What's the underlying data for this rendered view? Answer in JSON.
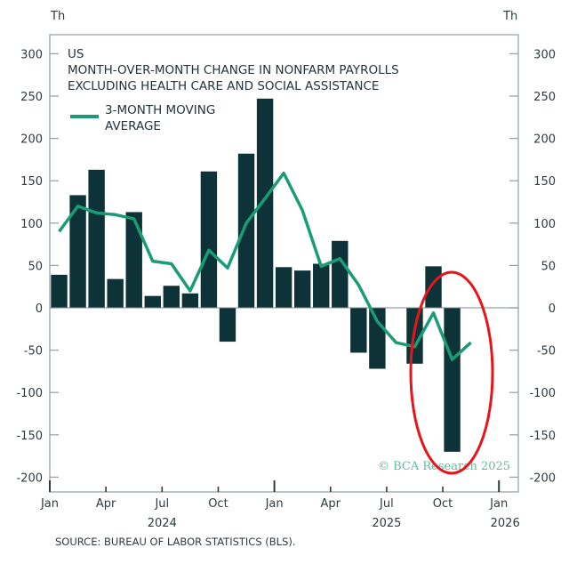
{
  "chart_data": {
    "type": "bar+line",
    "title_lines": [
      "US",
      "MONTH-OVER-MONTH CHANGE IN NONFARM PAYROLLS",
      "EXCLUDING HEALTH CARE AND SOCIAL ASSISTANCE"
    ],
    "ylabel_left": "Th",
    "ylabel_right": "Th",
    "ylim": [
      -200,
      300
    ],
    "yticks": [
      300,
      250,
      200,
      150,
      100,
      50,
      0,
      -50,
      -100,
      -150,
      -200
    ],
    "xticks": [
      {
        "month": "Jan",
        "year": "",
        "index": 0
      },
      {
        "month": "Apr",
        "year": "",
        "index": 3
      },
      {
        "month": "Jul",
        "year": "2024",
        "index": 6
      },
      {
        "month": "Oct",
        "year": "",
        "index": 9
      },
      {
        "month": "Jan",
        "year": "",
        "index": 12
      },
      {
        "month": "Apr",
        "year": "",
        "index": 15
      },
      {
        "month": "Jul",
        "year": "2025",
        "index": 18
      },
      {
        "month": "Oct",
        "year": "",
        "index": 21
      },
      {
        "month": "Jan",
        "year": "2026",
        "index": 24
      }
    ],
    "x": [
      "2024-01",
      "2024-02",
      "2024-03",
      "2024-04",
      "2024-05",
      "2024-06",
      "2024-07",
      "2024-08",
      "2024-09",
      "2024-10",
      "2024-11",
      "2024-12",
      "2025-01",
      "2025-02",
      "2025-03",
      "2025-04",
      "2025-05",
      "2025-06",
      "2025-07",
      "2025-08",
      "2025-09",
      "2025-10",
      "2025-11"
    ],
    "series": [
      {
        "type": "bar",
        "color": "#0d3338",
        "values": [
          39,
          133,
          163,
          34,
          113,
          14,
          26,
          17,
          161,
          -40,
          182,
          247,
          48,
          44,
          52,
          79,
          -53,
          -72,
          0,
          -66,
          49,
          -170,
          null
        ]
      },
      {
        "type": "line",
        "name": "3-MONTH MOVING AVERAGE",
        "color": "#1a9c74",
        "values": [
          90,
          120,
          112,
          110,
          105,
          55,
          52,
          20,
          68,
          47,
          100,
          129,
          159,
          115,
          49,
          58,
          27,
          -16,
          -41,
          -46,
          -6,
          -61,
          -41
        ]
      }
    ],
    "legend_lines": [
      "3-MONTH MOVING",
      "AVERAGE"
    ],
    "annotation": {
      "shape": "ellipse",
      "color": "#e8141b",
      "highlights": "2025-10"
    },
    "source": "SOURCE: BUREAU OF LABOR STATISTICS (BLS).",
    "watermark": "© BCA Research 2025"
  }
}
